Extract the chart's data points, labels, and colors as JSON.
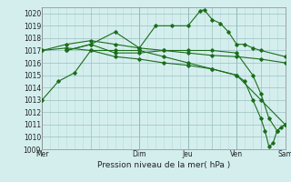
{
  "xlabel": "Pression niveau de la mer( hPa )",
  "background_color": "#d4eeee",
  "grid_color_major": "#9bbfbf",
  "grid_color_minor": "#b8d8d8",
  "line_color": "#1a6e1a",
  "ylim": [
    1009,
    1020.5
  ],
  "yticks": [
    1009,
    1010,
    1011,
    1012,
    1013,
    1014,
    1015,
    1016,
    1017,
    1018,
    1019,
    1020
  ],
  "day_labels": [
    "Mer",
    "",
    "Dim",
    "Jeu",
    "",
    "Ven",
    "",
    "Sam"
  ],
  "day_positions": [
    0,
    6,
    12,
    18,
    21,
    24,
    27,
    30
  ],
  "vline_positions": [
    0,
    12,
    18,
    24,
    30
  ],
  "xlim": [
    0,
    30
  ],
  "lines": [
    {
      "x": [
        0,
        2,
        4,
        6,
        9,
        12,
        15,
        18,
        21,
        24,
        27,
        30
      ],
      "y": [
        1013.0,
        1014.5,
        1015.2,
        1017.0,
        1017.0,
        1017.0,
        1016.5,
        1016.0,
        1015.5,
        1015.0,
        1013.0,
        1011.0
      ]
    },
    {
      "x": [
        0,
        3,
        6,
        9,
        12,
        15,
        18,
        21,
        24,
        27,
        30
      ],
      "y": [
        1017.0,
        1017.5,
        1017.8,
        1017.5,
        1017.2,
        1017.0,
        1016.8,
        1016.6,
        1016.5,
        1016.3,
        1016.0
      ]
    },
    {
      "x": [
        3,
        6,
        9,
        12,
        14,
        16,
        18,
        19.5,
        20,
        21,
        22,
        23,
        24,
        25,
        26,
        27,
        30
      ],
      "y": [
        1017.0,
        1017.5,
        1018.5,
        1017.2,
        1019.0,
        1019.0,
        1019.0,
        1020.2,
        1020.3,
        1019.5,
        1019.2,
        1018.5,
        1017.5,
        1017.5,
        1017.2,
        1017.0,
        1016.5
      ]
    },
    {
      "x": [
        3,
        6,
        9,
        12,
        15,
        18,
        21,
        24,
        26,
        27,
        28,
        29,
        30
      ],
      "y": [
        1017.0,
        1017.5,
        1016.8,
        1016.8,
        1017.0,
        1017.0,
        1017.0,
        1016.8,
        1015.0,
        1013.5,
        1011.5,
        1010.5,
        1011.0
      ]
    },
    {
      "x": [
        0,
        3,
        6,
        9,
        12,
        15,
        18,
        21,
        24,
        25,
        26,
        27,
        27.5,
        28,
        28.5,
        29,
        29.5,
        30
      ],
      "y": [
        1017.0,
        1017.2,
        1017.0,
        1016.5,
        1016.3,
        1016.0,
        1015.8,
        1015.5,
        1015.0,
        1014.5,
        1013.0,
        1011.5,
        1010.5,
        1009.2,
        1009.5,
        1010.5,
        1010.8,
        1011.0
      ]
    }
  ]
}
